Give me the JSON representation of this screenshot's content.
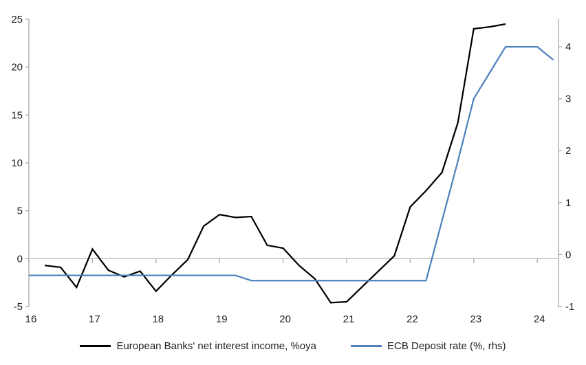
{
  "chart_data": {
    "type": "line",
    "title": "",
    "grid": "zero-line-only",
    "legend_position": "bottom",
    "x_axis": {
      "ticks": [
        "16",
        "17",
        "18",
        "19",
        "20",
        "21",
        "22",
        "23",
        "24"
      ],
      "range": [
        16,
        24.333
      ]
    },
    "left_axis": {
      "ticks": [
        "25",
        "20",
        "15",
        "10",
        "5",
        "0",
        "-5"
      ],
      "range": [
        -5,
        25
      ]
    },
    "right_axis": {
      "ticks": [
        "4",
        "3",
        "2",
        "1",
        "0",
        "-1"
      ],
      "range": [
        -1,
        4.53
      ]
    },
    "series": [
      {
        "name": "European Banks' net interest income, %oya",
        "axis": "left",
        "color": "#000000",
        "x": [
          16.25,
          16.5,
          16.75,
          17,
          17.25,
          17.5,
          17.75,
          18,
          18.25,
          18.5,
          18.75,
          19,
          19.25,
          19.5,
          19.75,
          20,
          20.25,
          20.5,
          20.75,
          21,
          21.25,
          21.5,
          21.75,
          22,
          22.25,
          22.5,
          22.75,
          23,
          23.25,
          23.5
        ],
        "values": [
          -0.7,
          -0.9,
          -3.0,
          1.0,
          -1.2,
          -1.9,
          -1.3,
          -3.4,
          -1.7,
          -0.1,
          3.4,
          4.6,
          4.3,
          4.4,
          1.4,
          1.1,
          -0.7,
          -2.1,
          -4.6,
          -4.5,
          -2.9,
          -1.3,
          0.3,
          5.4,
          7.1,
          9.0,
          14.2,
          24.0,
          24.2,
          24.5
        ]
      },
      {
        "name": "ECB Deposit rate (%, rhs)",
        "axis": "right",
        "color": "#4f81bd",
        "x": [
          16,
          16.25,
          16.5,
          16.75,
          17,
          17.25,
          17.5,
          17.75,
          18,
          18.25,
          18.5,
          18.75,
          19,
          19.25,
          19.5,
          19.75,
          20,
          20.25,
          20.5,
          20.75,
          21,
          21.25,
          21.5,
          21.75,
          22,
          22.25,
          22.5,
          22.75,
          23,
          23.25,
          23.5,
          23.75,
          24,
          24.25
        ],
        "values": [
          -0.4,
          -0.4,
          -0.4,
          -0.4,
          -0.4,
          -0.4,
          -0.4,
          -0.4,
          -0.4,
          -0.4,
          -0.4,
          -0.4,
          -0.4,
          -0.4,
          -0.5,
          -0.5,
          -0.5,
          -0.5,
          -0.5,
          -0.5,
          -0.5,
          -0.5,
          -0.5,
          -0.5,
          -0.5,
          -0.5,
          0.65,
          1.8,
          3.0,
          3.5,
          4.0,
          4.0,
          4.0,
          3.75
        ]
      }
    ]
  },
  "colors": {
    "axis": "#a6a6a6",
    "zero_line": "#bfbfbf",
    "label_text": "#1f1f1f"
  }
}
